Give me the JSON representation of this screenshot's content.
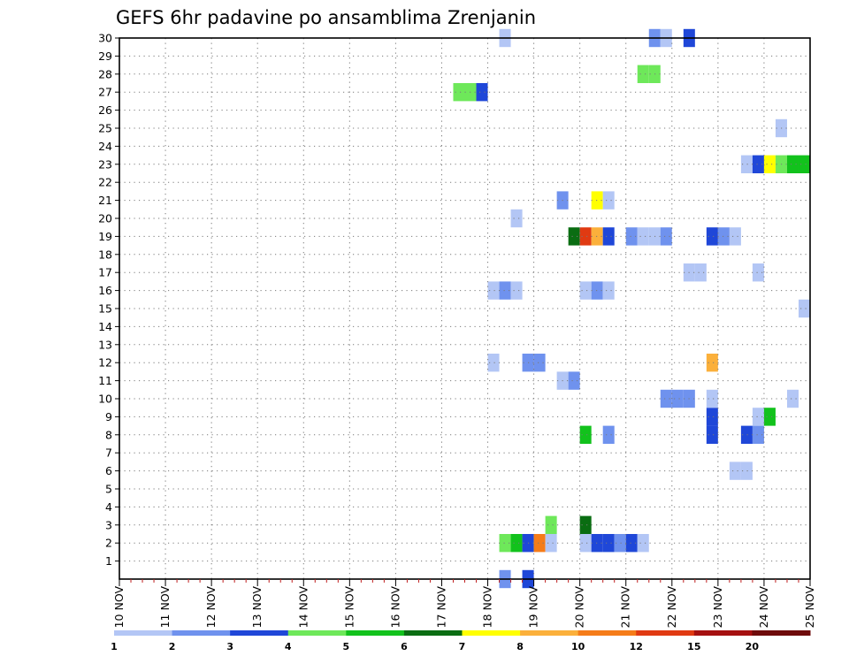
{
  "chart_data": {
    "type": "heatmap",
    "title": "GEFS 6hr padavine po ansamblima Zrenjanin",
    "x_tick_labels": [
      "10 NOV",
      "11 NOV",
      "12 NOV",
      "13 NOV",
      "14 NOV",
      "15 NOV",
      "16 NOV",
      "17 NOV",
      "18 NOV",
      "19 NOV",
      "20 NOV",
      "21 NOV",
      "22 NOV",
      "23 NOV",
      "24 NOV",
      "25 NOV"
    ],
    "x_unit": "6hr step (0 = 10 NOV 00Z, 4 steps per day)",
    "xlim": [
      0,
      60
    ],
    "y_ticks": [
      1,
      2,
      3,
      4,
      5,
      6,
      7,
      8,
      9,
      10,
      11,
      12,
      13,
      14,
      15,
      16,
      17,
      18,
      19,
      20,
      21,
      22,
      23,
      24,
      25,
      26,
      27,
      28,
      29,
      30
    ],
    "ylim": [
      0,
      30
    ],
    "grid": true,
    "colorbar": {
      "labels": [
        "1",
        "2",
        "3",
        "4",
        "5",
        "6",
        "7",
        "8",
        "10",
        "12",
        "15",
        "20"
      ],
      "colors": [
        "#b3c6f5",
        "#6f92ee",
        "#1f47d8",
        "#6ee85a",
        "#12c21c",
        "#0a6d12",
        "#ffff00",
        "#fbb03b",
        "#f57c19",
        "#e03a12",
        "#a51010",
        "#6e0b0b"
      ]
    },
    "cells": [
      {
        "t": 33,
        "m": 0,
        "c": 1
      },
      {
        "t": 35,
        "m": 0,
        "c": 2
      },
      {
        "t": 33,
        "m": 2,
        "c": 3
      },
      {
        "t": 34,
        "m": 2,
        "c": 4
      },
      {
        "t": 35,
        "m": 2,
        "c": 2
      },
      {
        "t": 36,
        "m": 2,
        "c": 8
      },
      {
        "t": 37,
        "m": 2,
        "c": 0
      },
      {
        "t": 40,
        "m": 2,
        "c": 0
      },
      {
        "t": 41,
        "m": 2,
        "c": 2
      },
      {
        "t": 42,
        "m": 2,
        "c": 2
      },
      {
        "t": 43,
        "m": 2,
        "c": 1
      },
      {
        "t": 44,
        "m": 2,
        "c": 2
      },
      {
        "t": 45,
        "m": 2,
        "c": 0
      },
      {
        "t": 37,
        "m": 3,
        "c": 3
      },
      {
        "t": 40,
        "m": 3,
        "c": 5
      },
      {
        "t": 53,
        "m": 6,
        "c": 0
      },
      {
        "t": 54,
        "m": 6,
        "c": 0
      },
      {
        "t": 40,
        "m": 8,
        "c": 4
      },
      {
        "t": 42,
        "m": 8,
        "c": 1
      },
      {
        "t": 51,
        "m": 8,
        "c": 2
      },
      {
        "t": 54,
        "m": 8,
        "c": 2
      },
      {
        "t": 55,
        "m": 8,
        "c": 1
      },
      {
        "t": 51,
        "m": 9,
        "c": 2
      },
      {
        "t": 55,
        "m": 9,
        "c": 0
      },
      {
        "t": 56,
        "m": 9,
        "c": 4
      },
      {
        "t": 47,
        "m": 10,
        "c": 1
      },
      {
        "t": 48,
        "m": 10,
        "c": 1
      },
      {
        "t": 49,
        "m": 10,
        "c": 1
      },
      {
        "t": 51,
        "m": 10,
        "c": 0
      },
      {
        "t": 58,
        "m": 10,
        "c": 0
      },
      {
        "t": 38,
        "m": 11,
        "c": 0
      },
      {
        "t": 39,
        "m": 11,
        "c": 1
      },
      {
        "t": 32,
        "m": 12,
        "c": 0
      },
      {
        "t": 35,
        "m": 12,
        "c": 1
      },
      {
        "t": 36,
        "m": 12,
        "c": 1
      },
      {
        "t": 51,
        "m": 12,
        "c": 7
      },
      {
        "t": 59,
        "m": 15,
        "c": 0
      },
      {
        "t": 32,
        "m": 16,
        "c": 0
      },
      {
        "t": 33,
        "m": 16,
        "c": 1
      },
      {
        "t": 34,
        "m": 16,
        "c": 0
      },
      {
        "t": 40,
        "m": 16,
        "c": 0
      },
      {
        "t": 41,
        "m": 16,
        "c": 1
      },
      {
        "t": 42,
        "m": 16,
        "c": 0
      },
      {
        "t": 49,
        "m": 17,
        "c": 0
      },
      {
        "t": 50,
        "m": 17,
        "c": 0
      },
      {
        "t": 55,
        "m": 17,
        "c": 0
      },
      {
        "t": 39,
        "m": 19,
        "c": 5
      },
      {
        "t": 40,
        "m": 19,
        "c": 9
      },
      {
        "t": 41,
        "m": 19,
        "c": 7
      },
      {
        "t": 42,
        "m": 19,
        "c": 2
      },
      {
        "t": 44,
        "m": 19,
        "c": 1
      },
      {
        "t": 45,
        "m": 19,
        "c": 0
      },
      {
        "t": 46,
        "m": 19,
        "c": 0
      },
      {
        "t": 47,
        "m": 19,
        "c": 1
      },
      {
        "t": 51,
        "m": 19,
        "c": 2
      },
      {
        "t": 52,
        "m": 19,
        "c": 1
      },
      {
        "t": 53,
        "m": 19,
        "c": 0
      },
      {
        "t": 34,
        "m": 20,
        "c": 0
      },
      {
        "t": 38,
        "m": 21,
        "c": 1
      },
      {
        "t": 41,
        "m": 21,
        "c": 6
      },
      {
        "t": 42,
        "m": 21,
        "c": 0
      },
      {
        "t": 54,
        "m": 23,
        "c": 0
      },
      {
        "t": 55,
        "m": 23,
        "c": 2
      },
      {
        "t": 56,
        "m": 23,
        "c": 6
      },
      {
        "t": 57,
        "m": 23,
        "c": 3
      },
      {
        "t": 58,
        "m": 23,
        "c": 4
      },
      {
        "t": 59,
        "m": 23,
        "c": 4
      },
      {
        "t": 57,
        "m": 25,
        "c": 0
      },
      {
        "t": 29,
        "m": 27,
        "c": 3
      },
      {
        "t": 30,
        "m": 27,
        "c": 3
      },
      {
        "t": 31,
        "m": 27,
        "c": 2
      },
      {
        "t": 45,
        "m": 28,
        "c": 3
      },
      {
        "t": 46,
        "m": 28,
        "c": 3
      },
      {
        "t": 33,
        "m": 30,
        "c": 0
      },
      {
        "t": 46,
        "m": 30,
        "c": 1
      },
      {
        "t": 47,
        "m": 30,
        "c": 0
      },
      {
        "t": 49,
        "m": 30,
        "c": 2
      }
    ]
  }
}
